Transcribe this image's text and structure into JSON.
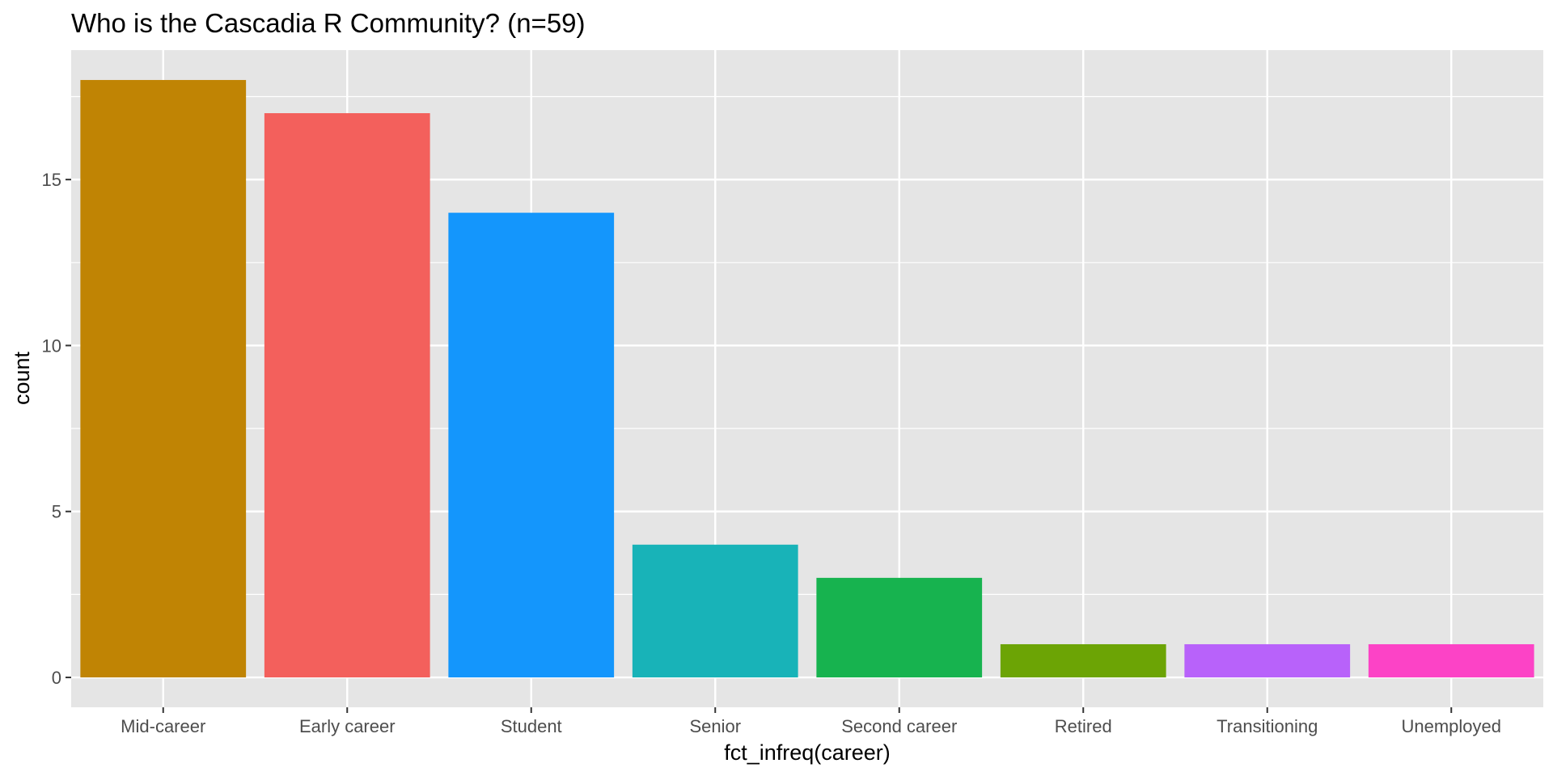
{
  "chart_data": {
    "type": "bar",
    "title": "Who is the Cascadia R Community? (n=59)",
    "xlabel": "fct_infreq(career)",
    "ylabel": "count",
    "categories": [
      "Mid-career",
      "Early career",
      "Student",
      "Senior",
      "Second career",
      "Retired",
      "Transitioning",
      "Unemployed"
    ],
    "values": [
      18,
      17,
      14,
      4,
      3,
      1,
      1,
      1
    ],
    "colors": [
      "#C08404",
      "#F3605C",
      "#1496FC",
      "#18B3B8",
      "#17B34F",
      "#6CA405",
      "#B862FA",
      "#FC43C6"
    ],
    "ylim": [
      -0.9,
      18.9
    ],
    "yticks": [
      0,
      5,
      10,
      15
    ],
    "ytick_labels": [
      "0",
      "5",
      "10",
      "15"
    ],
    "grid": true,
    "legend": "none",
    "panel_background": "#E5E5E5",
    "grid_color": "#FFFFFF"
  }
}
